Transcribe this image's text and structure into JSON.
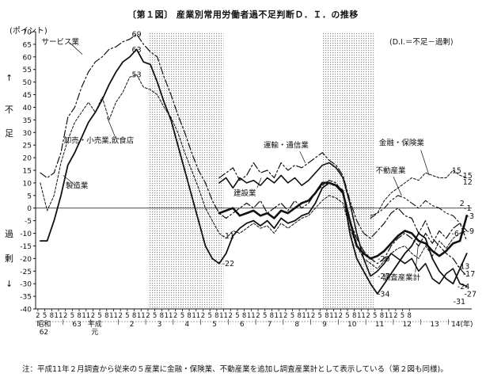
{
  "chart_data": {
    "type": "line",
    "title": "〔第１図〕 産業別常用労働者過不足判断Ｄ．Ｉ．の推移",
    "unit": "(ポイント)",
    "note": "(D.I.＝不足－過剰)",
    "ylim": [
      -40,
      70
    ],
    "y_ticks": [
      "-40",
      "-35",
      "-30",
      "-25",
      "-20",
      "-15",
      "-10",
      "-5",
      "0",
      "5",
      "10",
      "15",
      "20",
      "25",
      "30",
      "35",
      "40",
      "45",
      "50",
      "55",
      "60",
      "65",
      "70"
    ],
    "side_labels": {
      "up_arrow": "↑",
      "shortage_1": "不",
      "shortage_2": "足",
      "surplus_1": "過",
      "surplus_2": "剰",
      "down_arrow": "↓"
    },
    "x_month_ticks": [
      "2",
      "5",
      "8",
      "11",
      "2",
      "5",
      "8",
      "11",
      "2",
      "5",
      "8",
      "11",
      "2",
      "5",
      "8",
      "11",
      "2",
      "5",
      "8",
      "11",
      "2",
      "5",
      "8",
      "11",
      "2",
      "5",
      "8",
      "11",
      "2",
      "5",
      "8",
      "11",
      "2",
      "5",
      "8",
      "11",
      "2",
      "5",
      "8",
      "11",
      "2",
      "5",
      "8",
      "11",
      "2",
      "5",
      "8",
      "11",
      "2",
      "5",
      "8",
      "11",
      "2",
      "5",
      "8"
    ],
    "x_year_labels": [
      "昭和",
      "62",
      "63",
      "平成",
      "元",
      "2",
      "3",
      "4",
      "5",
      "6",
      "7",
      "8",
      "9",
      "10",
      "11",
      "12",
      "13",
      "14(年)"
    ],
    "shaded_ranges": [
      [
        1991.08,
        1993.83
      ],
      [
        1997.42,
        1999.33
      ]
    ],
    "series": [
      {
        "name": "サービス業",
        "x": [
          1987.17,
          1987.42,
          1987.67,
          1987.92,
          1988.17,
          1988.42,
          1988.67,
          1988.92,
          1989.17,
          1989.42,
          1989.67,
          1989.92,
          1990.17,
          1990.42,
          1990.67,
          1990.92,
          1991.17,
          1991.42,
          1991.67,
          1991.92,
          1992.17,
          1992.42,
          1992.67,
          1992.92,
          1993.17,
          1993.42,
          1993.67,
          1993.92,
          1994.17,
          1994.42,
          1994.67,
          1994.92,
          1995.17,
          1995.42,
          1995.67,
          1995.92,
          1996.17,
          1996.42,
          1996.67,
          1996.92,
          1997.17,
          1997.42,
          1997.67,
          1997.92,
          1998.17,
          1998.42,
          1998.67,
          1998.92,
          1999.17,
          1999.42,
          1999.67,
          1999.92,
          2000.17,
          2000.42,
          2000.67,
          2000.92,
          2001.17,
          2001.42,
          2001.67,
          2001.92,
          2002.17,
          2002.42,
          2002.67
        ],
        "values": [
          14,
          12,
          14,
          22,
          36,
          40,
          48,
          54,
          58,
          60,
          63,
          64,
          66,
          67,
          69,
          65,
          62,
          60,
          52,
          45,
          37,
          30,
          22,
          15,
          10,
          3,
          -2,
          -4,
          -2,
          0,
          2,
          0,
          3,
          -2,
          0,
          2,
          -1,
          3,
          0,
          2,
          6,
          9,
          11,
          10,
          6,
          -5,
          -12,
          -17,
          -20,
          -22,
          -20,
          -15,
          -12,
          -10,
          -12,
          -15,
          -10,
          -14,
          -9,
          -12,
          -8,
          -6,
          -13
        ]
      },
      {
        "name": "製造業",
        "x": [
          1987.17,
          1987.42,
          1987.67,
          1987.92,
          1988.17,
          1988.42,
          1988.67,
          1988.92,
          1989.17,
          1989.42,
          1989.67,
          1989.92,
          1990.17,
          1990.42,
          1990.67,
          1990.92,
          1991.17,
          1991.42,
          1991.67,
          1991.92,
          1992.17,
          1992.42,
          1992.67,
          1992.92,
          1993.17,
          1993.42,
          1993.67,
          1993.92,
          1994.17,
          1994.42,
          1994.67,
          1994.92,
          1995.17,
          1995.42,
          1995.67,
          1995.92,
          1996.17,
          1996.42,
          1996.67,
          1996.92,
          1997.17,
          1997.42,
          1997.67,
          1997.92,
          1998.17,
          1998.42,
          1998.67,
          1998.92,
          1999.17,
          1999.42,
          1999.67,
          1999.92,
          2000.17,
          2000.42,
          2000.67,
          2000.92,
          2001.17,
          2001.42,
          2001.67,
          2001.92,
          2002.17,
          2002.42,
          2002.67
        ],
        "values": [
          -13,
          -13,
          -5,
          5,
          17,
          22,
          28,
          34,
          38,
          43,
          49,
          54,
          58,
          60,
          63,
          58,
          57,
          50,
          42,
          35,
          25,
          15,
          5,
          -5,
          -15,
          -20,
          -22,
          -18,
          -11,
          -8,
          -6,
          -5,
          -7,
          -5,
          -8,
          -4,
          -6,
          -5,
          -3,
          -2,
          2,
          8,
          10,
          9,
          7,
          -10,
          -20,
          -25,
          -30,
          -34,
          -30,
          -26,
          -22,
          -18,
          -15,
          -10,
          -12,
          -20,
          -25,
          -28,
          -30,
          -24,
          -18
        ]
      },
      {
        "name": "卸売・小売業,飲食店",
        "x": [
          1987.17,
          1987.42,
          1987.67,
          1987.92,
          1988.17,
          1988.42,
          1988.67,
          1988.92,
          1989.17,
          1989.42,
          1989.67,
          1989.92,
          1990.17,
          1990.42,
          1990.67,
          1990.92,
          1991.17,
          1991.42,
          1991.67,
          1991.92,
          1992.17,
          1992.42,
          1992.67,
          1992.92,
          1993.17,
          1993.42,
          1993.67,
          1993.92,
          1994.17,
          1994.42,
          1994.67,
          1994.92,
          1995.17,
          1995.42,
          1995.67,
          1995.92,
          1996.17,
          1996.42,
          1996.67,
          1996.92,
          1997.17,
          1997.42,
          1997.67,
          1997.92,
          1998.17,
          1998.42,
          1998.67,
          1998.92,
          1999.17,
          1999.42,
          1999.67,
          1999.92,
          2000.17,
          2000.42,
          2000.67,
          2000.92,
          2001.17,
          2001.42,
          2001.67,
          2001.92,
          2002.17,
          2002.42,
          2002.67
        ],
        "values": [
          10,
          -1,
          5,
          18,
          27,
          34,
          38,
          42,
          38,
          44,
          35,
          42,
          46,
          52,
          53,
          48,
          47,
          45,
          40,
          36,
          30,
          22,
          15,
          8,
          0,
          -5,
          -10,
          -12,
          -9,
          -10,
          -8,
          -6,
          -8,
          -7,
          -10,
          -6,
          -8,
          -6,
          -4,
          -3,
          0,
          3,
          5,
          4,
          2,
          -8,
          -15,
          -20,
          -22,
          -24,
          -21,
          -18,
          -16,
          -15,
          -18,
          -20,
          -15,
          -19,
          -13,
          -16,
          -12,
          -10,
          -9
        ]
      },
      {
        "name": "運輸・通信業",
        "x": [
          1993.67,
          1993.92,
          1994.17,
          1994.42,
          1994.67,
          1994.92,
          1995.17,
          1995.42,
          1995.67,
          1995.92,
          1996.17,
          1996.42,
          1996.67,
          1996.92,
          1997.17,
          1997.42,
          1997.67,
          1997.92,
          1998.17,
          1998.42,
          1998.67,
          1998.92,
          1999.17,
          1999.42,
          1999.67,
          1999.92,
          2000.17,
          2000.42,
          2000.67,
          2000.92,
          2001.17,
          2001.42,
          2001.67,
          2001.92,
          2002.17,
          2002.42,
          2002.67
        ],
        "values": [
          12,
          14,
          16,
          11,
          13,
          18,
          14,
          15,
          12,
          18,
          15,
          17,
          16,
          18,
          20,
          22,
          19,
          17,
          13,
          3,
          -5,
          -10,
          -12,
          -9,
          -6,
          -2,
          0,
          -3,
          -4,
          -10,
          -5,
          -12,
          -15,
          -18,
          -20,
          -24,
          -27
        ]
      },
      {
        "name": "建設業",
        "x": [
          1993.67,
          1993.92,
          1994.17,
          1994.42,
          1994.67,
          1994.92,
          1995.17,
          1995.42,
          1995.67,
          1995.92,
          1996.17,
          1996.42,
          1996.67,
          1996.92,
          1997.17,
          1997.42,
          1997.67,
          1997.92,
          1998.17,
          1998.42,
          1998.67,
          1998.92,
          1999.17,
          1999.42,
          1999.67,
          1999.92,
          2000.17,
          2000.42,
          2000.67,
          2000.92,
          2001.17,
          2001.42,
          2001.67,
          2001.92,
          2002.17,
          2002.42,
          2002.67
        ],
        "values": [
          10,
          12,
          8,
          12,
          10,
          11,
          9,
          12,
          10,
          13,
          10,
          12,
          9,
          11,
          14,
          17,
          18,
          16,
          12,
          2,
          -10,
          -20,
          -27,
          -25,
          -22,
          -18,
          -20,
          -22,
          -20,
          -25,
          -22,
          -28,
          -30,
          -26,
          -24,
          -30,
          -31
        ]
      },
      {
        "name": "金融・保険業",
        "x": [
          1999.17,
          1999.42,
          1999.67,
          1999.92,
          2000.17,
          2000.42,
          2000.67,
          2000.92,
          2001.17,
          2001.42,
          2001.67,
          2001.92,
          2002.17,
          2002.42,
          2002.67
        ],
        "values": [
          -3,
          -2,
          3,
          6,
          8,
          10,
          12,
          11,
          14,
          13,
          12,
          12,
          15,
          13,
          12
        ]
      },
      {
        "name": "不動産業",
        "x": [
          1999.17,
          1999.42,
          1999.67,
          1999.92,
          2000.17,
          2000.42,
          2000.67,
          2000.92,
          2001.17,
          2001.42,
          2001.67,
          2001.92,
          2002.17,
          2002.42,
          2002.67
        ],
        "values": [
          -4,
          -2,
          0,
          3,
          5,
          4,
          2,
          0,
          3,
          1,
          0,
          -2,
          -3,
          -6,
          -9
        ]
      },
      {
        "name": "調査産業計",
        "x": [
          1993.67,
          1993.92,
          1994.17,
          1994.42,
          1994.67,
          1994.92,
          1995.17,
          1995.42,
          1995.67,
          1995.92,
          1996.17,
          1996.42,
          1996.67,
          1996.92,
          1997.17,
          1997.42,
          1997.67,
          1997.92,
          1998.17,
          1998.42,
          1998.67,
          1998.92,
          1999.17,
          1999.42,
          1999.67,
          1999.92,
          2000.17,
          2000.42,
          2000.67,
          2000.92,
          2001.17,
          2001.42,
          2001.67,
          2001.92,
          2002.17,
          2002.42,
          2002.67
        ],
        "values": [
          -2,
          -1,
          0,
          -3,
          -2,
          -1,
          -3,
          -2,
          -4,
          -1,
          -2,
          0,
          2,
          3,
          6,
          10,
          10,
          9,
          6,
          -5,
          -15,
          -18,
          -20,
          -19,
          -17,
          -14,
          -11,
          -9,
          -10,
          -13,
          -14,
          -17,
          -19,
          -17,
          -14,
          -13,
          -3
        ]
      }
    ],
    "annotations": [
      {
        "text": "69",
        "x": 1990.67,
        "y": 69
      },
      {
        "text": "63",
        "x": 1990.67,
        "y": 63
      },
      {
        "text": "53",
        "x": 1990.67,
        "y": 53
      },
      {
        "text": "サービス業",
        "x": 1987.9,
        "y": 66
      },
      {
        "text": "卸売・小売業,飲食店",
        "x": 1989.3,
        "y": 27
      },
      {
        "text": "製造業",
        "x": 1988.5,
        "y": 9
      },
      {
        "text": "運輸・通信業",
        "x": 1996.1,
        "y": 25
      },
      {
        "text": "建設業",
        "x": 1994.6,
        "y": 6
      },
      {
        "text": "金融・保険業",
        "x": 2000.3,
        "y": 26
      },
      {
        "text": "不動産業",
        "x": 1999.9,
        "y": 15
      },
      {
        "text": "調査産業計",
        "x": 2000.3,
        "y": -27.5
      },
      {
        "text": "-11",
        "x": 1994.0,
        "y": -11
      },
      {
        "text": "-22",
        "x": 1994.0,
        "y": -22
      },
      {
        "text": "-20",
        "x": 1999.65,
        "y": -20
      },
      {
        "text": "-27",
        "x": 1999.65,
        "y": -27
      },
      {
        "text": "-34",
        "x": 1999.65,
        "y": -34
      },
      {
        "text": "15",
        "x": 2002.3,
        "y": 15
      },
      {
        "text": "15",
        "x": 2002.7,
        "y": 13
      },
      {
        "text": "12",
        "x": 2002.7,
        "y": 10.5
      },
      {
        "text": "2",
        "x": 2002.5,
        "y": 2
      },
      {
        "text": "-1",
        "x": 2002.7,
        "y": 0
      },
      {
        "text": "-3",
        "x": 2002.8,
        "y": -3
      },
      {
        "text": "-6",
        "x": 2002.25,
        "y": -10
      },
      {
        "text": "-9",
        "x": 2002.8,
        "y": -9
      },
      {
        "text": "-13",
        "x": 2002.55,
        "y": -23
      },
      {
        "text": "-17",
        "x": 2002.75,
        "y": -26
      },
      {
        "text": "-24",
        "x": 2002.55,
        "y": -31
      },
      {
        "text": "-27",
        "x": 2002.8,
        "y": -34
      },
      {
        "text": "-31",
        "x": 2002.4,
        "y": -37
      }
    ]
  },
  "footnote": "注：平成11年２月調査から従来の５産業に金融・保険業、不動産業を追加し調査産業計として表示している（第２図も同様)。"
}
